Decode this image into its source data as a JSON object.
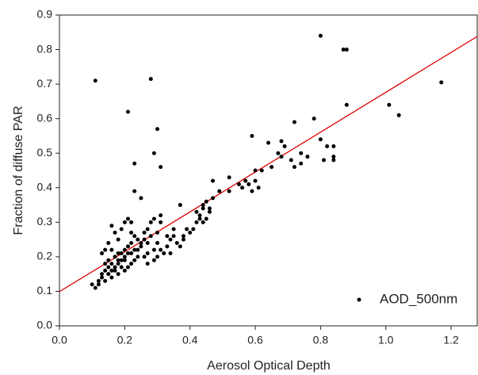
{
  "chart_data": {
    "type": "scatter",
    "xlabel": "Aerosol Optical Depth",
    "ylabel": "Fraction of diffuse PAR",
    "xlim": [
      0,
      1.28
    ],
    "ylim": [
      0,
      0.9
    ],
    "xticks": [
      {
        "value": 0,
        "label": "0.0"
      },
      0.2,
      0.4,
      0.6,
      0.8,
      {
        "value": 1,
        "label": "1.0"
      },
      1.2
    ],
    "yticks": [
      {
        "value": 0,
        "label": "0.0"
      },
      0.1,
      0.2,
      0.3,
      0.4,
      0.5,
      0.6,
      0.7,
      0.8,
      0.9
    ],
    "grid": false,
    "legend": "lower right",
    "series": [
      {
        "name": "AOD_500nm",
        "color": "#000000",
        "x": [
          0.11,
          0.28,
          0.21,
          0.3,
          0.29,
          0.23,
          0.31,
          0.23,
          0.25,
          0.8,
          0.87,
          0.88,
          0.88,
          1.17,
          1.01,
          1.04,
          0.78,
          0.72,
          0.59,
          0.64,
          0.68,
          0.69,
          0.67,
          0.68,
          0.8,
          0.82,
          0.84,
          0.74,
          0.71,
          0.72,
          0.74,
          0.76,
          0.81,
          0.84,
          0.84,
          0.65,
          0.62,
          0.6,
          0.61,
          0.59,
          0.58,
          0.56,
          0.52,
          0.52,
          0.47,
          0.45,
          0.46,
          0.44,
          0.43,
          0.45,
          0.46,
          0.44,
          0.42,
          0.43,
          0.37,
          0.39,
          0.4,
          0.38,
          0.36,
          0.35,
          0.34,
          0.33,
          0.32,
          0.3,
          0.31,
          0.31,
          0.29,
          0.28,
          0.27,
          0.26,
          0.28,
          0.3,
          0.31,
          0.29,
          0.27,
          0.26,
          0.25,
          0.24,
          0.22,
          0.21,
          0.22,
          0.2,
          0.19,
          0.18,
          0.16,
          0.17,
          0.15,
          0.13,
          0.14,
          0.16,
          0.17,
          0.18,
          0.19,
          0.2,
          0.21,
          0.22,
          0.23,
          0.24,
          0.23,
          0.22,
          0.21,
          0.2,
          0.19,
          0.18,
          0.17,
          0.16,
          0.15,
          0.14,
          0.13,
          0.12,
          0.11,
          0.12,
          0.1,
          0.14,
          0.15,
          0.16,
          0.17,
          0.18,
          0.19,
          0.2,
          0.21,
          0.22,
          0.23,
          0.24,
          0.14,
          0.15,
          0.13,
          0.16,
          0.18,
          0.2,
          0.25,
          0.26,
          0.27,
          0.33,
          0.35,
          0.38,
          0.41,
          0.42,
          0.44,
          0.47,
          0.49,
          0.55,
          0.57,
          0.6,
          0.37,
          0.34,
          0.3,
          0.29,
          0.27
        ],
        "values": [
          0.71,
          0.715,
          0.62,
          0.57,
          0.5,
          0.47,
          0.46,
          0.39,
          0.37,
          0.84,
          0.8,
          0.8,
          0.64,
          0.705,
          0.64,
          0.61,
          0.6,
          0.59,
          0.55,
          0.53,
          0.535,
          0.52,
          0.5,
          0.49,
          0.54,
          0.52,
          0.52,
          0.5,
          0.48,
          0.46,
          0.47,
          0.49,
          0.48,
          0.48,
          0.49,
          0.46,
          0.45,
          0.42,
          0.4,
          0.39,
          0.41,
          0.4,
          0.43,
          0.39,
          0.42,
          0.36,
          0.34,
          0.35,
          0.32,
          0.31,
          0.33,
          0.34,
          0.33,
          0.31,
          0.35,
          0.28,
          0.27,
          0.26,
          0.24,
          0.26,
          0.25,
          0.23,
          0.21,
          0.27,
          0.3,
          0.32,
          0.31,
          0.3,
          0.28,
          0.27,
          0.26,
          0.24,
          0.22,
          0.22,
          0.21,
          0.2,
          0.23,
          0.25,
          0.27,
          0.31,
          0.3,
          0.3,
          0.28,
          0.25,
          0.29,
          0.27,
          0.24,
          0.21,
          0.22,
          0.22,
          0.2,
          0.19,
          0.21,
          0.22,
          0.23,
          0.24,
          0.26,
          0.2,
          0.19,
          0.18,
          0.17,
          0.16,
          0.17,
          0.15,
          0.16,
          0.14,
          0.15,
          0.13,
          0.14,
          0.13,
          0.11,
          0.12,
          0.12,
          0.16,
          0.17,
          0.18,
          0.17,
          0.18,
          0.19,
          0.2,
          0.21,
          0.21,
          0.22,
          0.22,
          0.18,
          0.19,
          0.15,
          0.16,
          0.21,
          0.19,
          0.24,
          0.25,
          0.24,
          0.26,
          0.28,
          0.25,
          0.28,
          0.3,
          0.3,
          0.37,
          0.39,
          0.41,
          0.42,
          0.45,
          0.23,
          0.21,
          0.2,
          0.19,
          0.18
        ]
      }
    ],
    "lines": [
      {
        "color": "#e00000",
        "x": [
          0,
          1.28
        ],
        "values": [
          0.099,
          0.838
        ]
      }
    ]
  }
}
